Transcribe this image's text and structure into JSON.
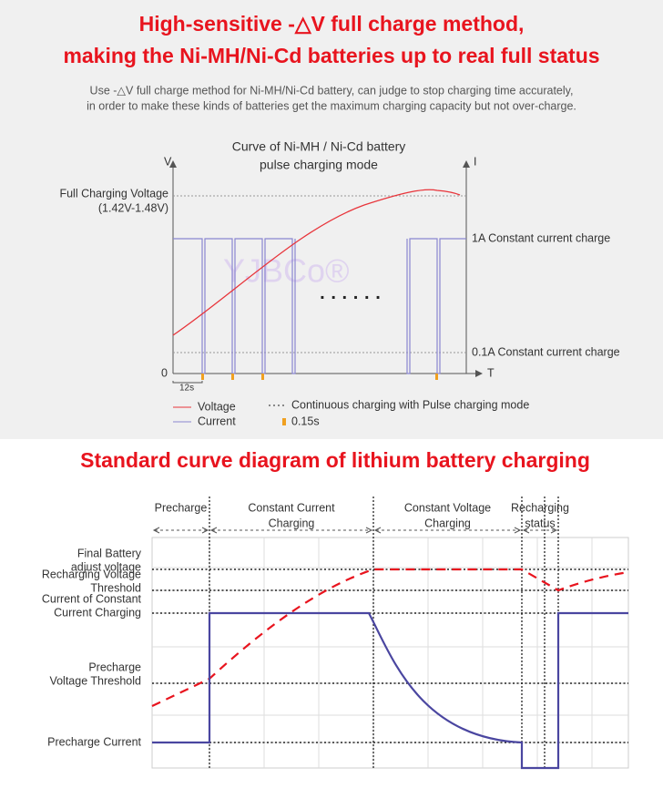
{
  "header": {
    "title_lines": [
      "High-sensitive -△V full charge method,",
      "making the Ni-MH/Ni-Cd batteries up to real full status"
    ],
    "description_lines": [
      "Use -△V full charge method for Ni-MH/Ni-Cd battery, can judge to stop charging time accurately,",
      "in order to make these kinds of batteries get the maximum charging capacity but not over-charge."
    ]
  },
  "nimh_diagram": {
    "title_lines": [
      "Curve of Ni-MH / Ni-Cd battery",
      "pulse charging mode"
    ],
    "axis_v": "V",
    "axis_i": "I",
    "axis_t": "T",
    "origin": "0",
    "full_voltage_lines": [
      "Full Charging Voltage",
      "(1.42V-1.48V)"
    ],
    "current_1a": "1A Constant current charge",
    "current_01a": "0.1A Constant current charge",
    "interval": "12s",
    "ellipsis": "· · · · · ·",
    "watermark": "YJBCo®",
    "legend": {
      "voltage": "Voltage",
      "current": "Current",
      "continuous": "Continuous charging with Pulse charging mode",
      "pulse": "0.15s"
    }
  },
  "lithium_diagram": {
    "title": "Standard curve diagram of lithium battery charging",
    "phases": [
      [
        "Precharge"
      ],
      [
        "Constant Current",
        "Charging"
      ],
      [
        "Constant Voltage",
        "Charging"
      ],
      [
        "Recharging",
        "status"
      ]
    ],
    "levels": [
      [
        "Final Battery",
        "adjust voltage"
      ],
      [
        "Recharging Voltage",
        "Threshold"
      ],
      [
        "Current of Constant",
        "Current Charging"
      ],
      [
        "Precharge",
        "Voltage Threshold"
      ],
      [
        "Precharge Current"
      ]
    ]
  }
}
